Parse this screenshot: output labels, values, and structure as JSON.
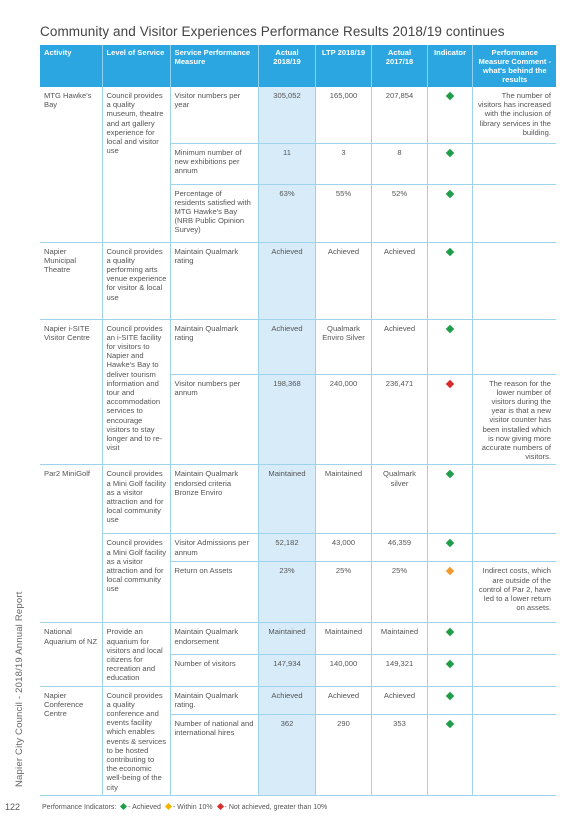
{
  "title": "Community and Visitor Experiences Performance Results 2018/19 continues",
  "headers": {
    "activity": "Activity",
    "level": "Level of Service",
    "measure": "Service Performance Measure",
    "actual_1819": "Actual 2018/19",
    "ltp_1819": "LTP 2018/19",
    "actual_1718": "Actual 2017/18",
    "indicator": "Indicator",
    "comment": "Performance Measure Comment - what's behind the results"
  },
  "rows": [
    {
      "activity": "MTG Hawke's Bay",
      "level": "Council provides a quality museum, theatre and art gallery experience for local and visitor use",
      "measure": "Visitor numbers per year",
      "actual": "305,052",
      "ltp": "165,000",
      "prev": "207,854",
      "indicator": "green",
      "comment": "The number of visitors has increased with the inclusion of library services in the building."
    },
    {
      "measure": "Minimum number of new exhibitions per annum",
      "actual": "11",
      "ltp": "3",
      "prev": "8",
      "indicator": "green",
      "comment": ""
    },
    {
      "measure": "Percentage of residents satisfied with MTG Hawke's Bay (NRB Public Opinion Survey)",
      "actual": "63%",
      "ltp": "55%",
      "prev": "52%",
      "indicator": "green",
      "comment": ""
    },
    {
      "activity": "Napier Municipal Theatre",
      "level": "Council provides a quality performing arts venue experience for visitor & local use",
      "measure": "Maintain Qualmark rating",
      "actual": "Achieved",
      "ltp": "Achieved",
      "prev": "Achieved",
      "indicator": "green",
      "comment": ""
    },
    {
      "activity": "Napier i-SITE Visitor Centre",
      "level": "Council provides an i-SITE facility for visitors to Napier and Hawke's Bay to deliver tourism information and tour and accommodation services to encourage visitors to stay longer and to re-visit",
      "measure": "Maintain Qualmark rating",
      "actual": "Achieved",
      "ltp": "Qualmark Enviro Silver",
      "prev": "Achieved",
      "indicator": "green",
      "comment": ""
    },
    {
      "measure": "Visitor numbers per annum",
      "actual": "198,368",
      "ltp": "240,000",
      "prev": "236,471",
      "indicator": "red",
      "comment": "The reason for the lower number of visitors during the year is that a new visitor counter has been installed which is now giving more accurate numbers of visitors."
    },
    {
      "activity": "Par2 MiniGolf",
      "level": "Council provides a Mini Golf facility as a visitor attraction and for local community use",
      "measure": "Maintain Qualmark endorsed criteria Bronze Enviro",
      "actual": "Maintained",
      "ltp": "Maintained",
      "prev": "Qualmark silver",
      "indicator": "green",
      "comment": ""
    },
    {
      "level": "Council provides a Mini Golf facility as a visitor attraction and for local community use",
      "measure": "Visitor Admissions per annum",
      "actual": "52,182",
      "ltp": "43,000",
      "prev": "46,359",
      "indicator": "green",
      "comment": ""
    },
    {
      "measure": "Return on Assets",
      "actual": "23%",
      "ltp": "25%",
      "prev": "25%",
      "indicator": "orange",
      "comment": "Indirect costs, which are outside of the control of Par 2, have led to a lower return on assets."
    },
    {
      "activity": "National Aquarium of NZ",
      "level": "Provide an aquarium for visitors and local citizens for recreation and education",
      "measure": "Maintain Qualmark endorsement",
      "actual": "Maintained",
      "ltp": "Maintained",
      "prev": "Maintained",
      "indicator": "green",
      "comment": ""
    },
    {
      "measure": "Number of visitors",
      "actual": "147,934",
      "ltp": "140,000",
      "prev": "149,321",
      "indicator": "green",
      "comment": ""
    },
    {
      "activity": "Napier Conference Centre",
      "level": "Council provides a quality conference and events facility which enables events & services to be hosted contributing to the economic well-being of the city",
      "measure": "Maintain Qualmark rating.",
      "actual": "Achieved",
      "ltp": "Achieved",
      "prev": "Achieved",
      "indicator": "green",
      "comment": ""
    },
    {
      "measure": "Number of national and international hires",
      "actual": "362",
      "ltp": "290",
      "prev": "353",
      "indicator": "green",
      "comment": ""
    }
  ],
  "legend": {
    "prefix": "Performance Indicators:",
    "achieved": "- Achieved",
    "within": "- Within 10%",
    "not_achieved": "- Not achieved, greater than 10%"
  },
  "page_number": "122",
  "side_text": "Napier City Council - 2018/19 Annual Report",
  "colors": {
    "header": "#2ba6e0",
    "actual_column": "#d7ebf8",
    "green": "#1f9e4a",
    "yellow": "#f2b400",
    "red": "#d92c2c",
    "orange": "#f29a2e"
  }
}
